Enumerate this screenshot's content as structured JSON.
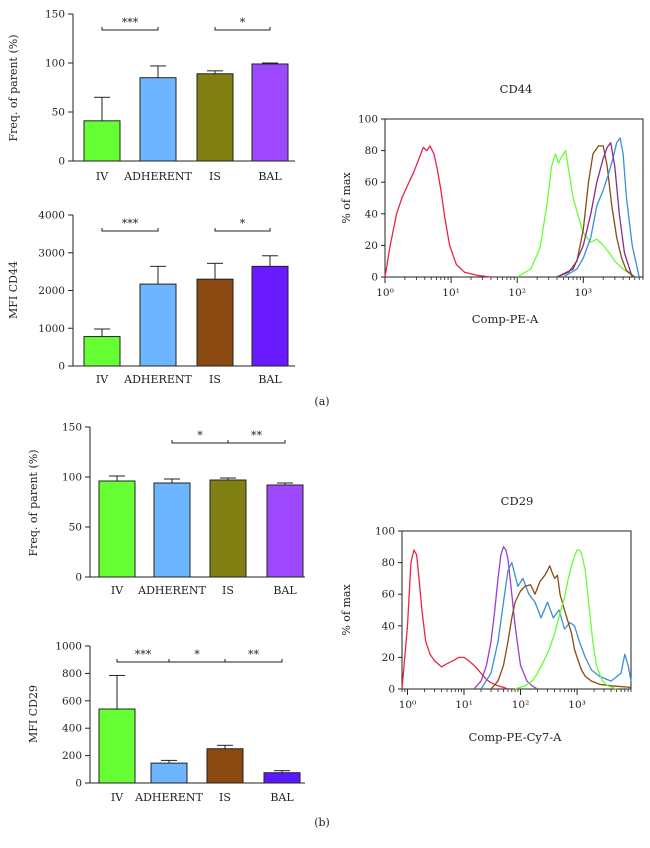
{
  "panels": [
    {
      "label": "(a)"
    },
    {
      "label": "(b)"
    }
  ],
  "chart_data": [
    {
      "id": "a1",
      "type": "bar",
      "ylabel": "Freq. of parent (%)",
      "categories": [
        "IV",
        "ADHERENT",
        "IS",
        "BAL"
      ],
      "values": [
        41,
        85,
        89,
        99
      ],
      "errors": [
        24,
        12,
        3,
        1
      ],
      "colors": [
        "#66ff33",
        "#6db6ff",
        "#7f7f12",
        "#9c49ff"
      ],
      "ylim": [
        0,
        150
      ],
      "yticks": [
        "0",
        "50",
        "100",
        "150"
      ],
      "significance": [
        {
          "from": 0,
          "to": 1,
          "label": "***"
        },
        {
          "from": 2,
          "to": 3,
          "label": "*"
        }
      ]
    },
    {
      "id": "a2",
      "type": "bar",
      "ylabel": "MFI CD44",
      "categories": [
        "IV",
        "ADHERENT",
        "IS",
        "BAL"
      ],
      "values": [
        780,
        2170,
        2300,
        2640
      ],
      "errors": [
        200,
        470,
        420,
        280
      ],
      "colors": [
        "#66ff33",
        "#6db6ff",
        "#8a4a12",
        "#6a1aff"
      ],
      "ylim": [
        0,
        4000
      ],
      "yticks": [
        "0",
        "1000",
        "2000",
        "3000",
        "4000"
      ],
      "significance": [
        {
          "from": 0,
          "to": 1,
          "label": "***"
        },
        {
          "from": 2,
          "to": 3,
          "label": "*"
        }
      ]
    },
    {
      "id": "a3",
      "type": "line",
      "title": "CD44",
      "xlabel": "Comp-PE-A",
      "ylabel": "% of max",
      "xscale": "log",
      "xlim": [
        1,
        8000
      ],
      "ylim": [
        0,
        100
      ],
      "xticks": [
        "10⁰",
        "10¹",
        "10²",
        "10³"
      ],
      "yticks": [
        "0",
        "20",
        "40",
        "60",
        "80",
        "100"
      ],
      "series": [
        {
          "name": "red",
          "color": "#e8254a",
          "x": [
            1,
            1.2,
            1.5,
            1.8,
            2.2,
            2.7,
            3.2,
            3.8,
            4.3,
            4.8,
            5.5,
            6.2,
            7,
            8,
            9.5,
            12,
            16,
            25,
            40
          ],
          "y": [
            0,
            20,
            40,
            50,
            58,
            66,
            74,
            82,
            80,
            83,
            78,
            68,
            55,
            38,
            20,
            8,
            3,
            1,
            0
          ]
        },
        {
          "name": "green",
          "color": "#66ff33",
          "x": [
            100,
            160,
            220,
            280,
            330,
            380,
            420,
            470,
            540,
            600,
            700,
            850,
            1000,
            1300,
            1600,
            2000,
            2500,
            3000,
            4000,
            6000
          ],
          "y": [
            0,
            5,
            18,
            45,
            70,
            78,
            72,
            76,
            80,
            68,
            50,
            38,
            28,
            22,
            24,
            20,
            15,
            10,
            5,
            0
          ]
        },
        {
          "name": "brown",
          "color": "#8a4a12",
          "x": [
            400,
            600,
            800,
            1000,
            1200,
            1400,
            1700,
            2000,
            2300,
            2700,
            3200,
            3800,
            4500,
            6000
          ],
          "y": [
            0,
            3,
            10,
            30,
            60,
            78,
            83,
            83,
            70,
            45,
            25,
            12,
            4,
            0
          ]
        },
        {
          "name": "blue",
          "color": "#3b8fd8",
          "x": [
            500,
            800,
            1000,
            1300,
            1600,
            2000,
            2400,
            2800,
            3200,
            3600,
            4000,
            4500,
            5500,
            7000
          ],
          "y": [
            0,
            5,
            12,
            25,
            45,
            55,
            65,
            75,
            85,
            88,
            78,
            50,
            20,
            0
          ]
        },
        {
          "name": "purple",
          "color": "#8a2b8a",
          "x": [
            400,
            700,
            1000,
            1300,
            1600,
            2000,
            2300,
            2600,
            3000,
            3500,
            4200,
            5500
          ],
          "y": [
            0,
            5,
            20,
            40,
            60,
            75,
            82,
            85,
            70,
            40,
            15,
            0
          ]
        }
      ]
    },
    {
      "id": "b1",
      "type": "bar",
      "ylabel": "Freq. of parent (%)",
      "categories": [
        "IV",
        "ADHERENT",
        "IS",
        "BAL"
      ],
      "values": [
        96,
        94,
        97,
        92
      ],
      "errors": [
        5,
        4,
        2,
        2
      ],
      "colors": [
        "#66ff33",
        "#6db6ff",
        "#7f7f12",
        "#9c49ff"
      ],
      "ylim": [
        0,
        150
      ],
      "yticks": [
        "0",
        "50",
        "100",
        "150"
      ],
      "significance": [
        {
          "from": 1,
          "to": 2,
          "label": "*"
        },
        {
          "from": 2,
          "to": 3,
          "label": "**"
        }
      ]
    },
    {
      "id": "b2",
      "type": "bar",
      "ylabel": "MFI CD29",
      "categories": [
        "IV",
        "ADHERENT",
        "IS",
        "BAL"
      ],
      "values": [
        540,
        145,
        250,
        75
      ],
      "errors": [
        245,
        20,
        25,
        15
      ],
      "colors": [
        "#66ff33",
        "#6db6ff",
        "#8a4a12",
        "#5a1aff"
      ],
      "ylim": [
        0,
        1000
      ],
      "yticks": [
        "0",
        "200",
        "400",
        "600",
        "800",
        "1000"
      ],
      "significance": [
        {
          "from": 0,
          "to": 1,
          "label": "***"
        },
        {
          "from": 1,
          "to": 2,
          "label": "*"
        },
        {
          "from": 2,
          "to": 3,
          "label": "**"
        }
      ]
    },
    {
      "id": "b3",
      "type": "line",
      "title": "CD29",
      "xlabel": "Comp-PE-Cy7-A",
      "ylabel": "% of max",
      "xscale": "log",
      "xlim": [
        0.8,
        9000
      ],
      "ylim": [
        0,
        100
      ],
      "xticks": [
        "10⁰",
        "10¹",
        "10²",
        "10³"
      ],
      "yticks": [
        "0",
        "20",
        "40",
        "60",
        "80",
        "100"
      ],
      "series": [
        {
          "name": "red",
          "color": "#e8254a",
          "x": [
            0.8,
            1,
            1.15,
            1.3,
            1.45,
            1.6,
            1.8,
            2.1,
            2.5,
            3,
            4,
            5,
            6.5,
            8,
            10,
            12,
            15,
            20,
            25,
            30,
            40,
            50,
            60
          ],
          "y": [
            0,
            40,
            80,
            88,
            85,
            70,
            50,
            30,
            22,
            18,
            14,
            16,
            18,
            20,
            20,
            18,
            15,
            10,
            6,
            4,
            2,
            1,
            0
          ]
        },
        {
          "name": "purple",
          "color": "#9a3cd8",
          "x": [
            15,
            20,
            25,
            30,
            35,
            40,
            45,
            50,
            55,
            60,
            70,
            80,
            100,
            130,
            160,
            200
          ],
          "y": [
            0,
            5,
            15,
            30,
            50,
            70,
            85,
            90,
            88,
            82,
            60,
            40,
            15,
            5,
            2,
            0
          ]
        },
        {
          "name": "blue",
          "color": "#3b8fd8",
          "x": [
            20,
            30,
            40,
            50,
            60,
            70,
            90,
            110,
            140,
            180,
            230,
            300,
            380,
            480,
            600,
            750,
            900,
            1100,
            1400,
            1800,
            2500,
            4000,
            6000,
            7000,
            8000,
            9000
          ],
          "y": [
            0,
            10,
            30,
            55,
            75,
            80,
            65,
            70,
            60,
            55,
            45,
            55,
            45,
            50,
            38,
            42,
            40,
            30,
            20,
            12,
            8,
            5,
            10,
            22,
            15,
            5
          ]
        },
        {
          "name": "brown",
          "color": "#8a4a12",
          "x": [
            30,
            40,
            50,
            60,
            70,
            80,
            100,
            120,
            150,
            180,
            220,
            270,
            300,
            330,
            360,
            400,
            450,
            500,
            600,
            700,
            800,
            900,
            1000,
            1200,
            1400,
            1800,
            2500,
            4000,
            9000
          ],
          "y": [
            0,
            5,
            15,
            30,
            45,
            55,
            62,
            65,
            66,
            60,
            68,
            72,
            75,
            78,
            74,
            70,
            72,
            60,
            50,
            42,
            35,
            25,
            20,
            12,
            8,
            5,
            3,
            2,
            1
          ]
        },
        {
          "name": "green",
          "color": "#66ff33",
          "x": [
            80,
            120,
            160,
            200,
            260,
            320,
            400,
            500,
            600,
            700,
            800,
            900,
            1000,
            1100,
            1200,
            1400,
            1600,
            1900,
            2200,
            2800,
            3500,
            5000
          ],
          "y": [
            0,
            2,
            5,
            10,
            18,
            25,
            35,
            48,
            58,
            70,
            78,
            84,
            88,
            88,
            86,
            75,
            55,
            30,
            15,
            5,
            2,
            0
          ]
        }
      ]
    }
  ]
}
